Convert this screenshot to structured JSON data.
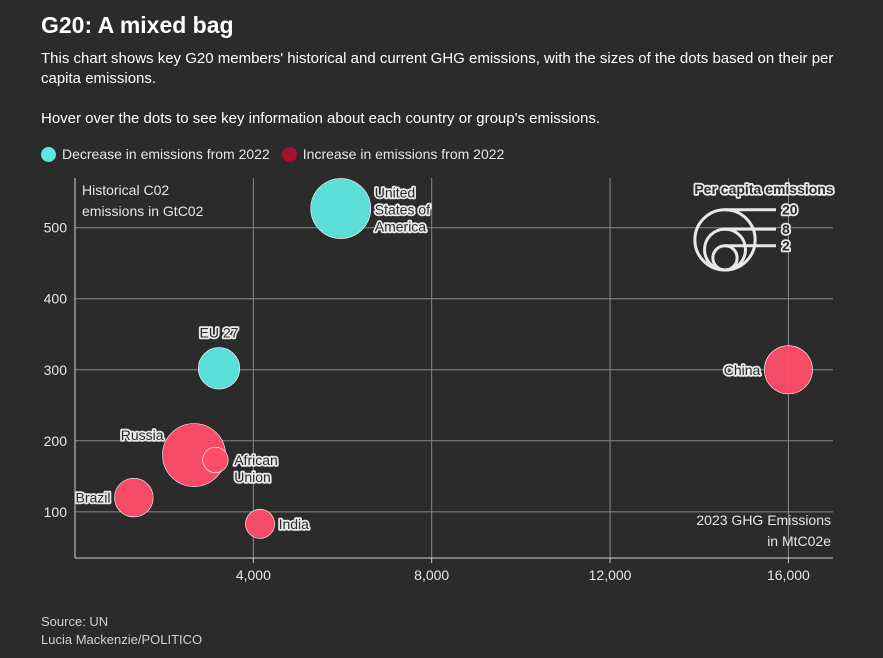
{
  "title": "G20: A mixed bag",
  "subtitle": "This chart shows key G20 members' historical and current GHG emissions, with the sizes of the dots based on their per capita emissions.",
  "hover_note": "Hover over the dots to see key information about each country or group's emissions.",
  "legend": {
    "decrease": {
      "label": "Decrease in emissions from 2022",
      "color": "#5ee6e0"
    },
    "increase": {
      "label": "Increase in emissions from 2022",
      "color": "#ff4d6a"
    },
    "increase_swatch": "#a51230"
  },
  "footer": {
    "source": "Source: UN",
    "credit": "Lucia Mackenzie/POLITICO"
  },
  "chart_data": {
    "type": "scatter",
    "title": "G20: A mixed bag",
    "ylabel_lines": [
      "Historical C02",
      "emissions in GtC02"
    ],
    "xlabel_lines": [
      "2023 GHG Emissions",
      "in MtC02e"
    ],
    "xlim": [
      0,
      17000
    ],
    "ylim": [
      35,
      570
    ],
    "x_ticks": [
      4000,
      8000,
      12000,
      16000
    ],
    "x_tick_labels": [
      "4,000",
      "8,000",
      "12,000",
      "16,000"
    ],
    "y_ticks": [
      100,
      200,
      300,
      400,
      500
    ],
    "y_tick_labels": [
      "100",
      "200",
      "300",
      "400",
      "500"
    ],
    "grid": true,
    "size_legend": {
      "title": "Per capita emissions",
      "values": [
        20,
        8,
        2
      ],
      "labels": [
        "20",
        "8",
        "2"
      ]
    },
    "points": [
      {
        "name": "United States of America",
        "label_lines": [
          "United",
          "States of",
          "America"
        ],
        "x": 5960,
        "y": 527,
        "per_capita": 17.6,
        "change": "decrease",
        "label_side": "right"
      },
      {
        "name": "EU 27",
        "label_lines": [
          "EU 27"
        ],
        "x": 3230,
        "y": 302,
        "per_capita": 7.3,
        "change": "decrease",
        "label_side": "top"
      },
      {
        "name": "China",
        "label_lines": [
          "China"
        ],
        "x": 16000,
        "y": 300,
        "per_capita": 10.5,
        "change": "increase",
        "label_side": "left"
      },
      {
        "name": "Russia",
        "label_lines": [
          "Russia"
        ],
        "x": 2670,
        "y": 180,
        "per_capita": 19.7,
        "change": "increase",
        "label_side": "left"
      },
      {
        "name": "African Union",
        "label_lines": [
          "African",
          "Union"
        ],
        "x": 3150,
        "y": 173,
        "per_capita": 2.0,
        "change": "increase",
        "label_side": "right"
      },
      {
        "name": "Brazil",
        "label_lines": [
          "Brazil"
        ],
        "x": 1320,
        "y": 120,
        "per_capita": 6.1,
        "change": "increase",
        "label_side": "left"
      },
      {
        "name": "India",
        "label_lines": [
          "India"
        ],
        "x": 4150,
        "y": 83,
        "per_capita": 2.9,
        "change": "increase",
        "label_side": "right"
      }
    ]
  }
}
